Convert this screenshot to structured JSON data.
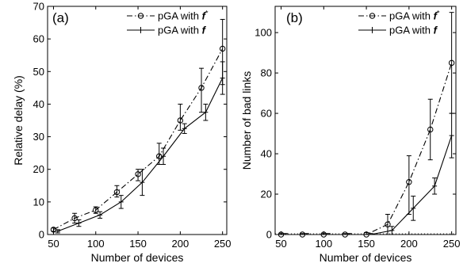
{
  "chart_data": [
    {
      "type": "line",
      "panel_label": "(a)",
      "xlabel": "Number of devices",
      "ylabel": "Relative delay (%)",
      "xlim": [
        43,
        255
      ],
      "ylim": [
        0,
        70
      ],
      "xticks": [
        50,
        100,
        150,
        200,
        250
      ],
      "yticks": [
        0,
        10,
        20,
        30,
        40,
        50,
        60,
        70
      ],
      "legend_position": "top-right",
      "series": [
        {
          "name": "pGA with f",
          "name_suffix": "*",
          "marker": "circle",
          "line_style": "dash-dot",
          "x": [
            50,
            75,
            100,
            125,
            150,
            175,
            200,
            225,
            250
          ],
          "y": [
            1.5,
            5,
            7.5,
            13,
            18.5,
            24,
            35,
            45,
            57
          ],
          "err_low": [
            1,
            3.5,
            6.5,
            11.5,
            16.5,
            21.5,
            32,
            37.5,
            46
          ],
          "err_high": [
            2,
            6.5,
            8.5,
            15,
            20,
            28,
            40,
            51,
            66
          ]
        },
        {
          "name": "pGA with f",
          "name_suffix": "",
          "marker": "plus",
          "line_style": "solid",
          "x": [
            55,
            80,
            105,
            130,
            155,
            180,
            205,
            230,
            250
          ],
          "y": [
            1,
            3.5,
            6,
            10,
            16,
            24,
            32.5,
            37.5,
            48
          ],
          "err_low": [
            0.5,
            2.5,
            5,
            8,
            12,
            21.5,
            31,
            35,
            43
          ],
          "err_high": [
            1.5,
            4.5,
            7,
            12,
            20,
            26.5,
            34,
            40,
            53
          ]
        }
      ]
    },
    {
      "type": "line",
      "panel_label": "(b)",
      "xlabel": "Number of devices",
      "ylabel": "Number of bad links",
      "xlim": [
        43,
        255
      ],
      "ylim": [
        0,
        113
      ],
      "xticks": [
        50,
        100,
        150,
        200,
        250
      ],
      "yticks": [
        0,
        20,
        40,
        60,
        80,
        100
      ],
      "legend_position": "top-right",
      "series": [
        {
          "name": "pGA with f",
          "name_suffix": "*",
          "marker": "circle",
          "line_style": "dash-dot",
          "x": [
            50,
            75,
            100,
            125,
            150,
            175,
            200,
            225,
            250
          ],
          "y": [
            0,
            0,
            0,
            0,
            0,
            5,
            26,
            52,
            85
          ],
          "err_low": [
            0,
            0,
            0,
            0,
            0,
            0,
            10,
            37,
            60
          ],
          "err_high": [
            0.5,
            0.5,
            0.5,
            0.5,
            1,
            10,
            39,
            67,
            110
          ]
        },
        {
          "name": "pGA with f",
          "name_suffix": "",
          "marker": "plus",
          "line_style": "solid",
          "x": [
            55,
            80,
            105,
            130,
            155,
            180,
            205,
            230,
            250
          ],
          "y": [
            0,
            0,
            0,
            0,
            0,
            2,
            13,
            24,
            49
          ],
          "err_low": [
            0,
            0,
            0,
            0,
            0,
            0,
            7,
            20,
            38
          ],
          "err_high": [
            0.5,
            0.5,
            0.5,
            0.5,
            0.5,
            4,
            19,
            28,
            60
          ]
        }
      ]
    }
  ]
}
